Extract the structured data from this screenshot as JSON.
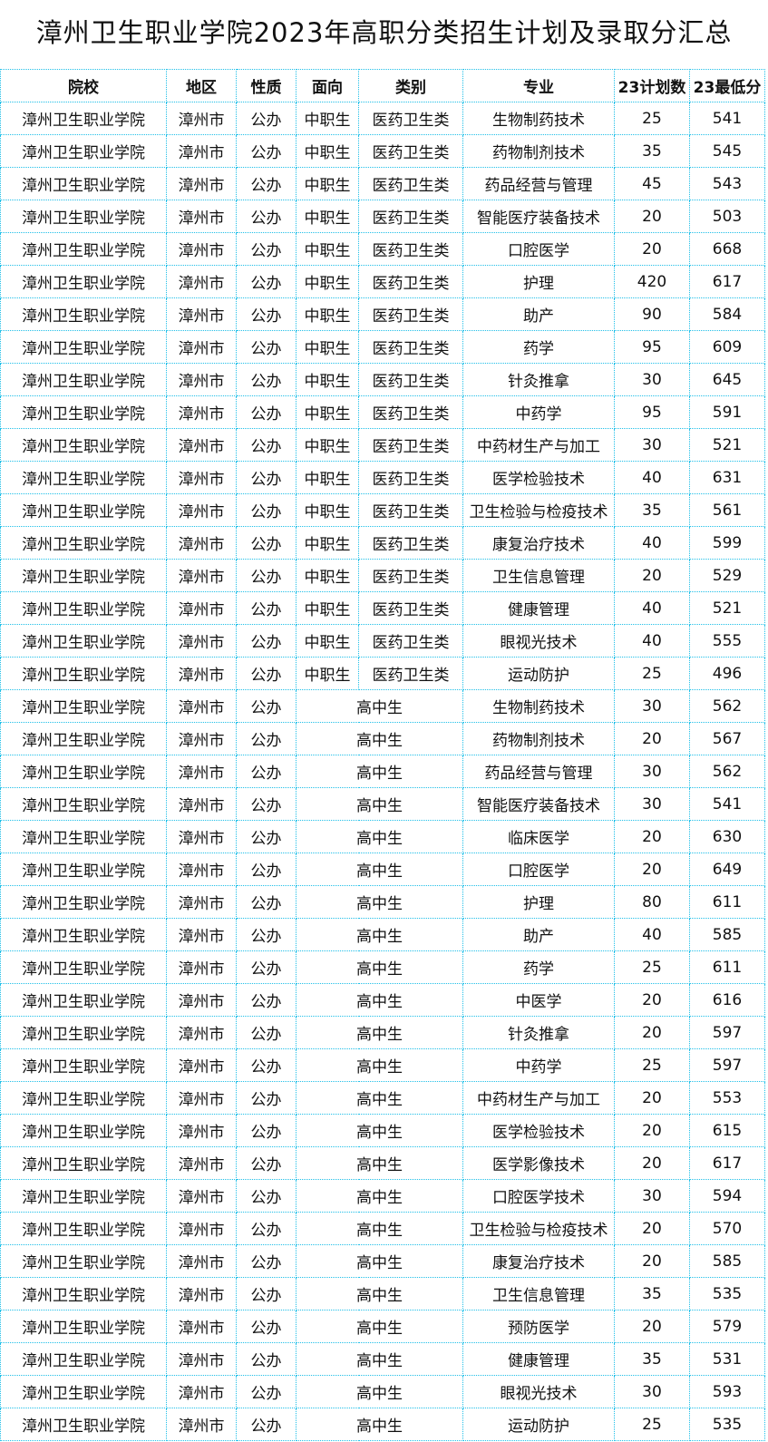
{
  "title": "漳州卫生职业学院2023年高职分类招生计划及录取分汇总",
  "colors": {
    "border": "#1fbfe8"
  },
  "headers": [
    "院校",
    "地区",
    "性质",
    "面向",
    "类别",
    "专业",
    "23计划数",
    "23最低分"
  ],
  "rows": [
    [
      "漳州卫生职业学院",
      "漳州市",
      "公办",
      "中职生",
      "医药卫生类",
      "生物制药技术",
      "25",
      "541"
    ],
    [
      "漳州卫生职业学院",
      "漳州市",
      "公办",
      "中职生",
      "医药卫生类",
      "药物制剂技术",
      "35",
      "545"
    ],
    [
      "漳州卫生职业学院",
      "漳州市",
      "公办",
      "中职生",
      "医药卫生类",
      "药品经营与管理",
      "45",
      "543"
    ],
    [
      "漳州卫生职业学院",
      "漳州市",
      "公办",
      "中职生",
      "医药卫生类",
      "智能医疗装备技术",
      "20",
      "503"
    ],
    [
      "漳州卫生职业学院",
      "漳州市",
      "公办",
      "中职生",
      "医药卫生类",
      "口腔医学",
      "20",
      "668"
    ],
    [
      "漳州卫生职业学院",
      "漳州市",
      "公办",
      "中职生",
      "医药卫生类",
      "护理",
      "420",
      "617"
    ],
    [
      "漳州卫生职业学院",
      "漳州市",
      "公办",
      "中职生",
      "医药卫生类",
      "助产",
      "90",
      "584"
    ],
    [
      "漳州卫生职业学院",
      "漳州市",
      "公办",
      "中职生",
      "医药卫生类",
      "药学",
      "95",
      "609"
    ],
    [
      "漳州卫生职业学院",
      "漳州市",
      "公办",
      "中职生",
      "医药卫生类",
      "针灸推拿",
      "30",
      "645"
    ],
    [
      "漳州卫生职业学院",
      "漳州市",
      "公办",
      "中职生",
      "医药卫生类",
      "中药学",
      "95",
      "591"
    ],
    [
      "漳州卫生职业学院",
      "漳州市",
      "公办",
      "中职生",
      "医药卫生类",
      "中药材生产与加工",
      "30",
      "521"
    ],
    [
      "漳州卫生职业学院",
      "漳州市",
      "公办",
      "中职生",
      "医药卫生类",
      "医学检验技术",
      "40",
      "631"
    ],
    [
      "漳州卫生职业学院",
      "漳州市",
      "公办",
      "中职生",
      "医药卫生类",
      "卫生检验与检疫技术",
      "35",
      "561"
    ],
    [
      "漳州卫生职业学院",
      "漳州市",
      "公办",
      "中职生",
      "医药卫生类",
      "康复治疗技术",
      "40",
      "599"
    ],
    [
      "漳州卫生职业学院",
      "漳州市",
      "公办",
      "中职生",
      "医药卫生类",
      "卫生信息管理",
      "20",
      "529"
    ],
    [
      "漳州卫生职业学院",
      "漳州市",
      "公办",
      "中职生",
      "医药卫生类",
      "健康管理",
      "40",
      "521"
    ],
    [
      "漳州卫生职业学院",
      "漳州市",
      "公办",
      "中职生",
      "医药卫生类",
      "眼视光技术",
      "40",
      "555"
    ],
    [
      "漳州卫生职业学院",
      "漳州市",
      "公办",
      "中职生",
      "医药卫生类",
      "运动防护",
      "25",
      "496"
    ],
    [
      "漳州卫生职业学院",
      "漳州市",
      "公办",
      "高中生",
      "",
      "生物制药技术",
      "30",
      "562"
    ],
    [
      "漳州卫生职业学院",
      "漳州市",
      "公办",
      "高中生",
      "",
      "药物制剂技术",
      "20",
      "567"
    ],
    [
      "漳州卫生职业学院",
      "漳州市",
      "公办",
      "高中生",
      "",
      "药品经营与管理",
      "30",
      "562"
    ],
    [
      "漳州卫生职业学院",
      "漳州市",
      "公办",
      "高中生",
      "",
      "智能医疗装备技术",
      "30",
      "541"
    ],
    [
      "漳州卫生职业学院",
      "漳州市",
      "公办",
      "高中生",
      "",
      "临床医学",
      "20",
      "630"
    ],
    [
      "漳州卫生职业学院",
      "漳州市",
      "公办",
      "高中生",
      "",
      "口腔医学",
      "20",
      "649"
    ],
    [
      "漳州卫生职业学院",
      "漳州市",
      "公办",
      "高中生",
      "",
      "护理",
      "80",
      "611"
    ],
    [
      "漳州卫生职业学院",
      "漳州市",
      "公办",
      "高中生",
      "",
      "助产",
      "40",
      "585"
    ],
    [
      "漳州卫生职业学院",
      "漳州市",
      "公办",
      "高中生",
      "",
      "药学",
      "25",
      "611"
    ],
    [
      "漳州卫生职业学院",
      "漳州市",
      "公办",
      "高中生",
      "",
      "中医学",
      "20",
      "616"
    ],
    [
      "漳州卫生职业学院",
      "漳州市",
      "公办",
      "高中生",
      "",
      "针灸推拿",
      "20",
      "597"
    ],
    [
      "漳州卫生职业学院",
      "漳州市",
      "公办",
      "高中生",
      "",
      "中药学",
      "25",
      "597"
    ],
    [
      "漳州卫生职业学院",
      "漳州市",
      "公办",
      "高中生",
      "",
      "中药材生产与加工",
      "20",
      "553"
    ],
    [
      "漳州卫生职业学院",
      "漳州市",
      "公办",
      "高中生",
      "",
      "医学检验技术",
      "20",
      "615"
    ],
    [
      "漳州卫生职业学院",
      "漳州市",
      "公办",
      "高中生",
      "",
      "医学影像技术",
      "20",
      "617"
    ],
    [
      "漳州卫生职业学院",
      "漳州市",
      "公办",
      "高中生",
      "",
      "口腔医学技术",
      "30",
      "594"
    ],
    [
      "漳州卫生职业学院",
      "漳州市",
      "公办",
      "高中生",
      "",
      "卫生检验与检疫技术",
      "20",
      "570"
    ],
    [
      "漳州卫生职业学院",
      "漳州市",
      "公办",
      "高中生",
      "",
      "康复治疗技术",
      "20",
      "585"
    ],
    [
      "漳州卫生职业学院",
      "漳州市",
      "公办",
      "高中生",
      "",
      "卫生信息管理",
      "35",
      "535"
    ],
    [
      "漳州卫生职业学院",
      "漳州市",
      "公办",
      "高中生",
      "",
      "预防医学",
      "20",
      "579"
    ],
    [
      "漳州卫生职业学院",
      "漳州市",
      "公办",
      "高中生",
      "",
      "健康管理",
      "35",
      "531"
    ],
    [
      "漳州卫生职业学院",
      "漳州市",
      "公办",
      "高中生",
      "",
      "眼视光技术",
      "30",
      "593"
    ],
    [
      "漳州卫生职业学院",
      "漳州市",
      "公办",
      "高中生",
      "",
      "运动防护",
      "25",
      "535"
    ]
  ]
}
